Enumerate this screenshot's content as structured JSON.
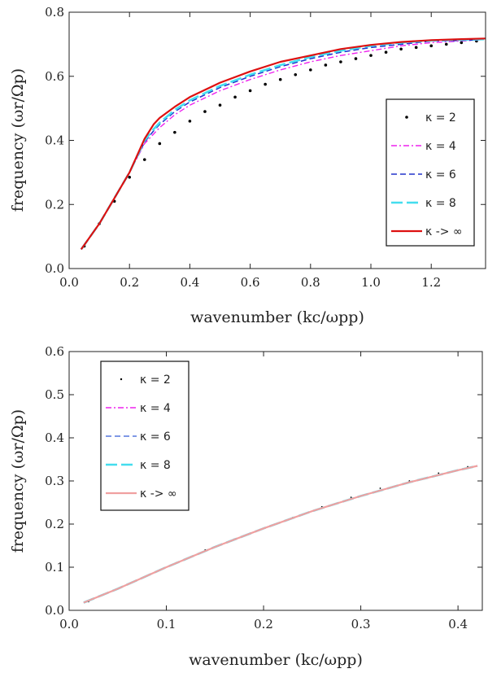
{
  "chart_data": [
    {
      "type": "line",
      "title": "",
      "xlabel": "wavenumber (kc/ωpp)",
      "ylabel": "frequency (ωr/Ωp)",
      "xlim": [
        0.0,
        1.38
      ],
      "ylim": [
        0.0,
        0.8
      ],
      "xticks": [
        "0.0",
        "0.2",
        "0.4",
        "0.6",
        "0.8",
        "1.0",
        "1.2"
      ],
      "xtick_values": [
        0.0,
        0.2,
        0.4,
        0.6,
        0.8,
        1.0,
        1.2
      ],
      "yticks": [
        "0.0",
        "0.2",
        "0.4",
        "0.6",
        "0.8"
      ],
      "ytick_values": [
        0.0,
        0.2,
        0.4,
        0.6,
        0.8
      ],
      "legend_position": "right",
      "series": [
        {
          "name": "κ = 2",
          "style": "dots",
          "color": "#000000",
          "x": [
            0.05,
            0.1,
            0.15,
            0.2,
            0.25,
            0.3,
            0.35,
            0.4,
            0.45,
            0.5,
            0.55,
            0.6,
            0.65,
            0.7,
            0.75,
            0.8,
            0.85,
            0.9,
            0.95,
            1.0,
            1.05,
            1.1,
            1.15,
            1.2,
            1.25,
            1.3,
            1.35
          ],
          "y": [
            0.07,
            0.14,
            0.21,
            0.285,
            0.34,
            0.39,
            0.425,
            0.46,
            0.49,
            0.51,
            0.535,
            0.555,
            0.575,
            0.59,
            0.605,
            0.62,
            0.635,
            0.645,
            0.655,
            0.665,
            0.675,
            0.685,
            0.69,
            0.695,
            0.7,
            0.705,
            0.71
          ]
        },
        {
          "name": "κ = 4",
          "style": "dashdot",
          "color": "#ee22ee",
          "x": [
            0.04,
            0.1,
            0.15,
            0.2,
            0.25,
            0.28,
            0.3,
            0.35,
            0.4,
            0.5,
            0.6,
            0.7,
            0.8,
            0.9,
            1.0,
            1.1,
            1.2,
            1.3,
            1.38
          ],
          "y": [
            0.06,
            0.14,
            0.22,
            0.3,
            0.39,
            0.42,
            0.44,
            0.48,
            0.51,
            0.555,
            0.59,
            0.62,
            0.645,
            0.665,
            0.68,
            0.695,
            0.705,
            0.71,
            0.715
          ]
        },
        {
          "name": "κ = 6",
          "style": "dashed",
          "color": "#2233cc",
          "x": [
            0.04,
            0.1,
            0.15,
            0.2,
            0.25,
            0.28,
            0.3,
            0.35,
            0.4,
            0.5,
            0.6,
            0.7,
            0.8,
            0.9,
            1.0,
            1.1,
            1.2,
            1.3,
            1.38
          ],
          "y": [
            0.06,
            0.14,
            0.22,
            0.3,
            0.395,
            0.43,
            0.45,
            0.49,
            0.52,
            0.565,
            0.6,
            0.63,
            0.655,
            0.675,
            0.69,
            0.7,
            0.71,
            0.712,
            0.715
          ]
        },
        {
          "name": "κ = 8",
          "style": "longdash",
          "color": "#44ddee",
          "x": [
            0.04,
            0.1,
            0.15,
            0.2,
            0.25,
            0.28,
            0.3,
            0.35,
            0.4,
            0.5,
            0.6,
            0.7,
            0.8,
            0.9,
            1.0,
            1.1,
            1.2,
            1.3,
            1.38
          ],
          "y": [
            0.06,
            0.14,
            0.22,
            0.3,
            0.4,
            0.435,
            0.455,
            0.495,
            0.525,
            0.57,
            0.605,
            0.635,
            0.66,
            0.68,
            0.695,
            0.705,
            0.712,
            0.714,
            0.716
          ]
        },
        {
          "name": "κ -> ∞",
          "style": "solid",
          "color": "#dd1111",
          "x": [
            0.04,
            0.1,
            0.15,
            0.2,
            0.25,
            0.28,
            0.3,
            0.35,
            0.4,
            0.5,
            0.6,
            0.7,
            0.8,
            0.9,
            1.0,
            1.1,
            1.2,
            1.3,
            1.38
          ],
          "y": [
            0.06,
            0.14,
            0.22,
            0.3,
            0.405,
            0.45,
            0.47,
            0.505,
            0.535,
            0.58,
            0.615,
            0.645,
            0.665,
            0.685,
            0.698,
            0.707,
            0.713,
            0.716,
            0.718
          ]
        }
      ]
    },
    {
      "type": "line",
      "title": "",
      "xlabel": "wavenumber (kc/ωpp)",
      "ylabel": "frequency (ωr/Ωp)",
      "xlim": [
        0.0,
        0.425
      ],
      "ylim": [
        0.0,
        0.6
      ],
      "xticks": [
        "0.0",
        "0.1",
        "0.2",
        "0.3",
        "0.4"
      ],
      "xtick_values": [
        0.0,
        0.1,
        0.2,
        0.3,
        0.4
      ],
      "yticks": [
        "0.0",
        "0.1",
        "0.2",
        "0.3",
        "0.4",
        "0.5",
        "0.6"
      ],
      "ytick_values": [
        0.0,
        0.1,
        0.2,
        0.3,
        0.4,
        0.5,
        0.6
      ],
      "legend_position": "top-left",
      "series": [
        {
          "name": "κ = 2",
          "style": "dots",
          "color": "#000000",
          "x": [
            0.02,
            0.05,
            0.08,
            0.11,
            0.14,
            0.17,
            0.2,
            0.23,
            0.26,
            0.29,
            0.32,
            0.35,
            0.38,
            0.41
          ],
          "y": [
            0.02,
            0.05,
            0.08,
            0.11,
            0.14,
            0.165,
            0.19,
            0.215,
            0.24,
            0.262,
            0.283,
            0.3,
            0.318,
            0.333
          ]
        },
        {
          "name": "κ = 4",
          "style": "dashdot",
          "color": "#ee22ee",
          "x": [
            0.015,
            0.05,
            0.1,
            0.15,
            0.2,
            0.25,
            0.3,
            0.35,
            0.4,
            0.42
          ],
          "y": [
            0.018,
            0.05,
            0.1,
            0.147,
            0.19,
            0.23,
            0.265,
            0.297,
            0.325,
            0.335
          ]
        },
        {
          "name": "κ = 6",
          "style": "dashed",
          "color": "#5577dd",
          "x": [
            0.015,
            0.05,
            0.1,
            0.15,
            0.2,
            0.25,
            0.3,
            0.35,
            0.4,
            0.42
          ],
          "y": [
            0.018,
            0.05,
            0.1,
            0.147,
            0.19,
            0.23,
            0.265,
            0.297,
            0.325,
            0.335
          ]
        },
        {
          "name": "κ = 8",
          "style": "longdash",
          "color": "#44ddee",
          "x": [
            0.015,
            0.05,
            0.1,
            0.15,
            0.2,
            0.25,
            0.3,
            0.35,
            0.4,
            0.42
          ],
          "y": [
            0.018,
            0.05,
            0.1,
            0.147,
            0.19,
            0.23,
            0.265,
            0.297,
            0.325,
            0.335
          ]
        },
        {
          "name": "κ -> ∞",
          "style": "solid",
          "color": "#f0a0a0",
          "x": [
            0.015,
            0.05,
            0.1,
            0.15,
            0.2,
            0.25,
            0.3,
            0.35,
            0.4,
            0.42
          ],
          "y": [
            0.018,
            0.05,
            0.1,
            0.147,
            0.19,
            0.23,
            0.265,
            0.297,
            0.325,
            0.335
          ]
        }
      ]
    }
  ]
}
